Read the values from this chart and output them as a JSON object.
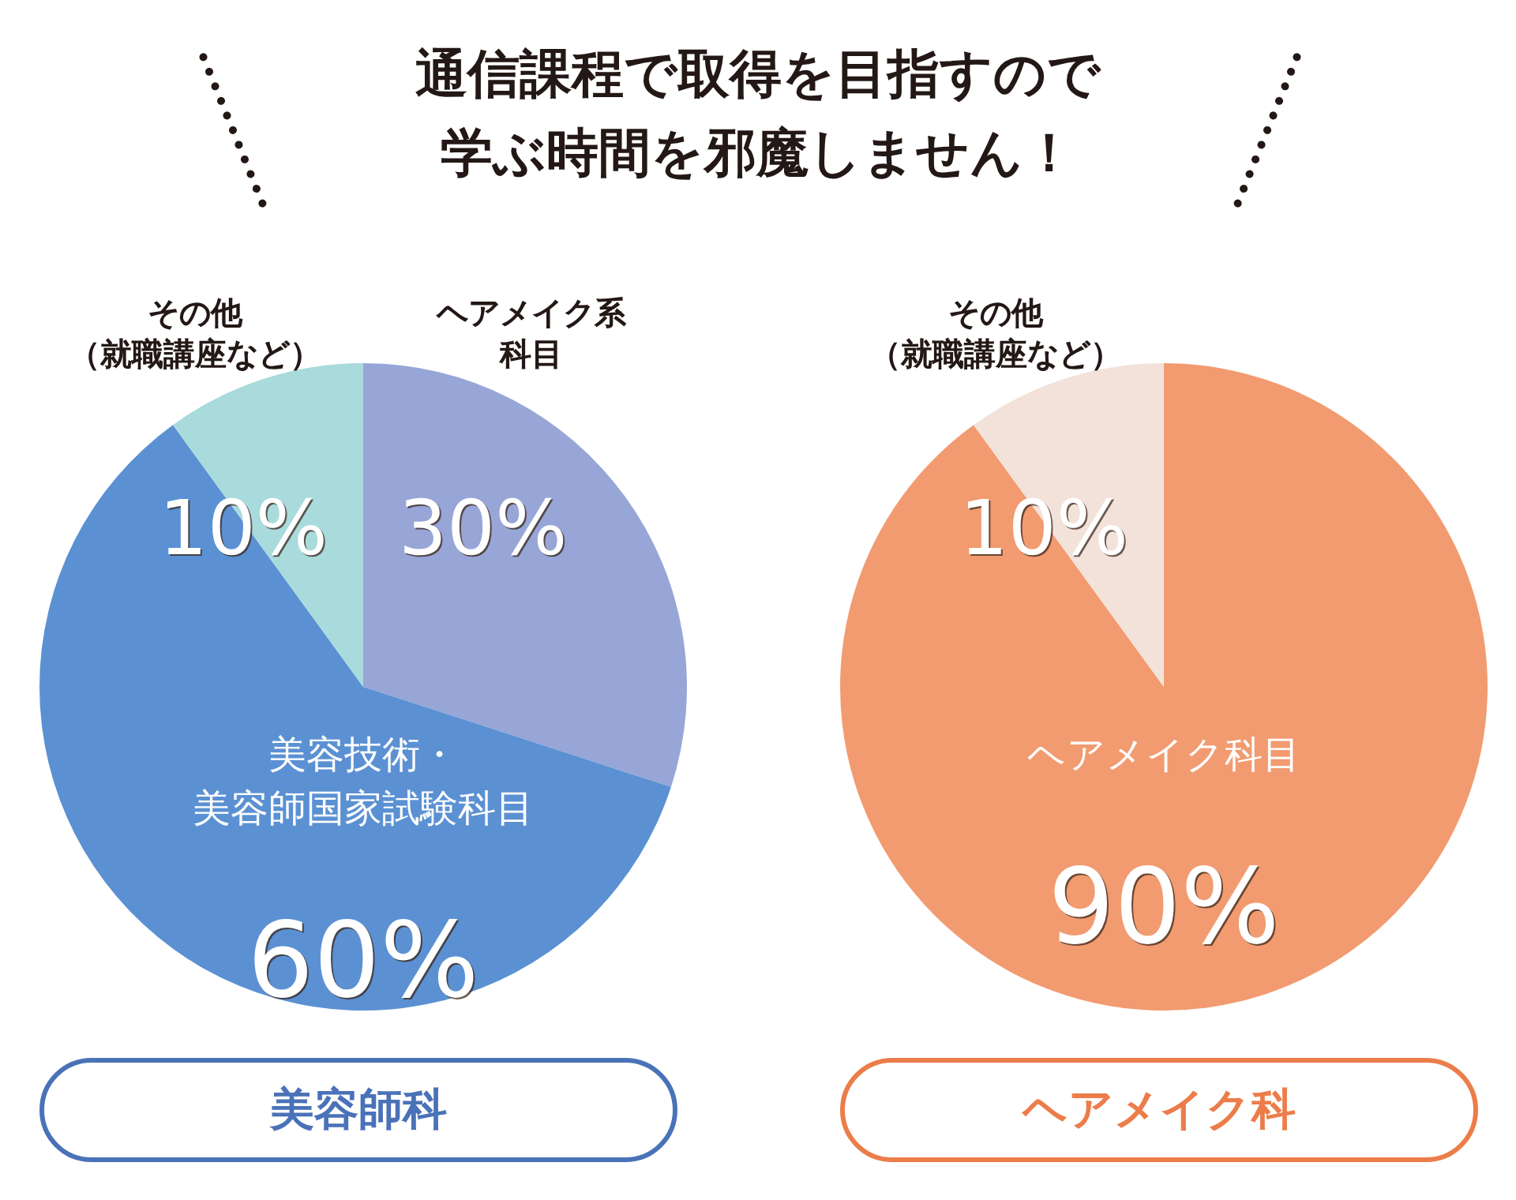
{
  "chart_data": [
    {
      "type": "other",
      "title": "通信課程で取得を目指すので学ぶ時間を邪魔しません！"
    },
    {
      "type": "pie",
      "title": "美容師科",
      "categories": [
        "ヘアメイク系科目",
        "美容技術・美容師国家試験科目",
        "その他（就職講座など）"
      ],
      "values": [
        30,
        60,
        10
      ],
      "colors": [
        "#97a6d6",
        "#5b91d3",
        "#a9dbdc"
      ],
      "value_labels": [
        "30%",
        "60%",
        "10%"
      ],
      "color": "#4a72b8"
    },
    {
      "type": "pie",
      "title": "ヘアメイク科",
      "categories": [
        "ヘアメイク科目",
        "その他（就職講座など）"
      ],
      "values": [
        90,
        10
      ],
      "colors": [
        "#f29b70",
        "#f3e2da"
      ],
      "value_labels": [
        "90%",
        "10%"
      ],
      "color": "#ec7d4a"
    }
  ]
}
